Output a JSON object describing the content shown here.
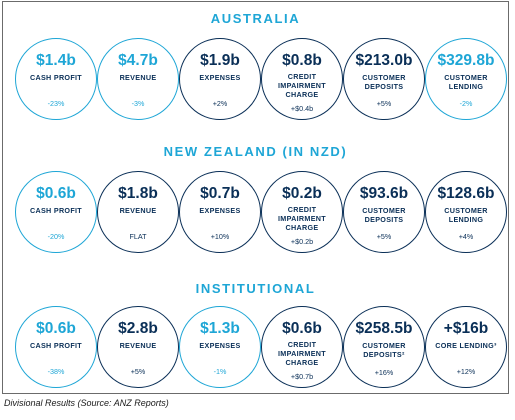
{
  "colors": {
    "accent": "#1ea6d6",
    "navy": "#0a2f57",
    "frame": "#6b6b6b"
  },
  "chart_data": [
    {
      "type": "table",
      "title": "AUSTRALIA",
      "metrics": [
        {
          "value": "$1.4b",
          "label": "CASH PROFIT",
          "change": "-23%"
        },
        {
          "value": "$4.7b",
          "label": "REVENUE",
          "change": "-3%"
        },
        {
          "value": "$1.9b",
          "label": "EXPENSES",
          "change": "+2%"
        },
        {
          "value": "$0.8b",
          "label": "CREDIT IMPAIRMENT CHARGE",
          "change": "+$0.4b"
        },
        {
          "value": "$213.0b",
          "label": "CUSTOMER DEPOSITS",
          "change": "+5%"
        },
        {
          "value": "$329.8b",
          "label": "CUSTOMER LENDING",
          "change": "-2%"
        }
      ]
    },
    {
      "type": "table",
      "title": "NEW ZEALAND (IN NZD)",
      "metrics": [
        {
          "value": "$0.6b",
          "label": "CASH PROFIT",
          "change": "-20%"
        },
        {
          "value": "$1.8b",
          "label": "REVENUE",
          "change": "FLAT"
        },
        {
          "value": "$0.7b",
          "label": "EXPENSES",
          "change": "+10%"
        },
        {
          "value": "$0.2b",
          "label": "CREDIT IMPAIRMENT CHARGE",
          "change": "+$0.2b"
        },
        {
          "value": "$93.6b",
          "label": "CUSTOMER DEPOSITS",
          "change": "+5%"
        },
        {
          "value": "$128.6b",
          "label": "CUSTOMER LENDING",
          "change": "+4%"
        }
      ]
    },
    {
      "type": "table",
      "title": "INSTITUTIONAL",
      "metrics": [
        {
          "value": "$0.6b",
          "label": "CASH PROFIT",
          "change": "-38%"
        },
        {
          "value": "$2.8b",
          "label": "REVENUE",
          "change": "+5%"
        },
        {
          "value": "$1.3b",
          "label": "EXPENSES",
          "change": "-1%"
        },
        {
          "value": "$0.6b",
          "label": "CREDIT IMPAIRMENT CHARGE",
          "change": "+$0.7b"
        },
        {
          "value": "$258.5b",
          "label": "CUSTOMER DEPOSITS²",
          "change": "+16%"
        },
        {
          "value": "+$16b",
          "label": "CORE LENDING³",
          "change": "+12%"
        }
      ]
    }
  ],
  "caption": "Divisional Results (Source: ANZ Reports)"
}
